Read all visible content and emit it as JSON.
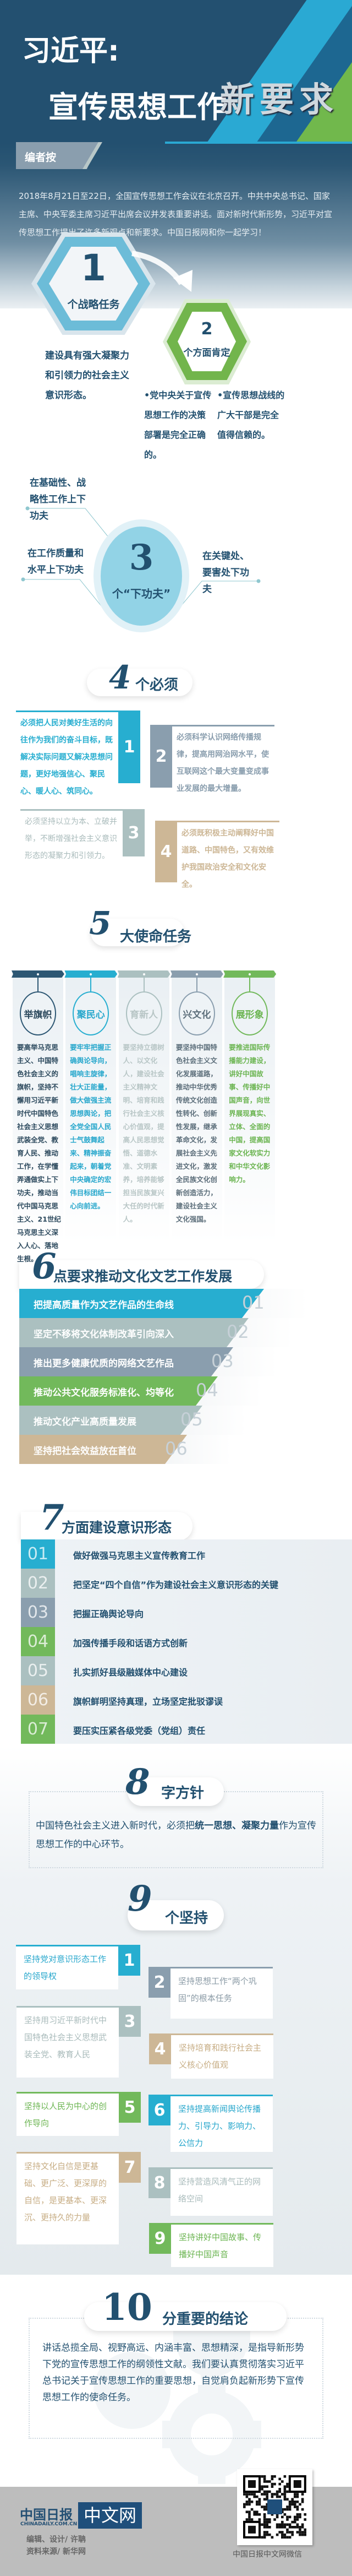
{
  "colors": {
    "navy": "#235070",
    "cyan": "#27aed0",
    "slate": "#8a9eae",
    "sage": "#abc0c0",
    "tan": "#cdb796",
    "green": "#72b95b"
  },
  "header": {
    "title_line1": "习近平:",
    "title_line2": "宣传思想工作",
    "title_highlight": "新要求"
  },
  "editor_note": {
    "label": "编者按",
    "text": "2018年8月21日至22日，全国宣传思想工作会议在北京召开。中共中央总书记、国家主席、中央军委主席习近平出席会议并发表重要讲话。面对新时代新形势，习近平对宣传思想工作提出了许多新观点和新要求。中国日报网和你一起学习！"
  },
  "s1": {
    "number": "1",
    "label": "个战略任务",
    "text": "建设具有强大凝聚力和引领力的社会主义意识形态。"
  },
  "s2": {
    "number": "2",
    "label": "个方面肯定",
    "items": [
      "•党中央关于宣传思想工作的决策部署是完全正确的。",
      "•宣传思想战线的广大干部是完全值得信赖的。"
    ]
  },
  "s3": {
    "number": "3",
    "label": "个“下功夫”",
    "items": [
      "在基础性、战略性工作上下功夫",
      "在工作质量和水平上下功夫",
      "在关键处、要害处下功夫"
    ]
  },
  "s4": {
    "number": "4",
    "label": "个必须",
    "items": [
      {
        "n": "1",
        "text": "必须把人民对美好生活的向往作为我们的奋斗目标，既解决实际问题又解决思想问题，更好地强信心、聚民心、暖人心、筑同心。"
      },
      {
        "n": "2",
        "text": "必须科学认识网络传播规律，提高用网治网水平，使互联网这个最大变量变成事业发展的最大增量。"
      },
      {
        "n": "3",
        "text": "必须坚持以立为本、立破并举，不断增强社会主义意识形态的凝聚力和引领力。"
      },
      {
        "n": "4",
        "text": "必须既积极主动阐释好中国道路、中国特色，又有效维护我国政治安全和文化安全。"
      }
    ]
  },
  "s5": {
    "number": "5",
    "label": "大使命任务",
    "items": [
      {
        "title": "举旗帜",
        "text": "要高举马克思主义、中国特色社会主义的旗帜，坚持不懈用习近平新时代中国特色社会主义思想武装全党、教育人民、推动工作，在学懂弄通做实上下功夫，推动当代中国马克思主义、21世纪马克思主义深入人心、落地生根。"
      },
      {
        "title": "聚民心",
        "text": "要牢牢把握正确舆论导向，唱响主旋律，壮大正能量，做大做强主流思想舆论，把全党全国人民士气鼓舞起来、精神振奋起来，朝着党中央确定的宏伟目标团结一心向前进。"
      },
      {
        "title": "育新人",
        "text": "要坚持立德树人、以文化人，建设社会主义精神文明、培育和践行社会主义核心价值观，提高人民思想觉悟、道德水准、文明素养，培养能够担当民族复兴大任的时代新人。"
      },
      {
        "title": "兴文化",
        "text": "要坚持中国特色社会主义文化发展道路，推动中华优秀传统文化创造性转化、创新性发展，继承革命文化，发展社会主义先进文化，激发全民族文化创新创造活力，建设社会主义文化强国。"
      },
      {
        "title": "展形象",
        "text": "要推进国际传播能力建设，讲好中国故事、传播好中国声音，向世界展现真实、立体、全面的中国，提高国家文化软实力和中华文化影响力。"
      }
    ]
  },
  "s6": {
    "number": "6",
    "label": "点要求推动文化文艺工作发展",
    "items": [
      {
        "n": "01",
        "text": "把提高质量作为文艺作品的生命线"
      },
      {
        "n": "02",
        "text": "坚定不移将文化体制改革引向深入"
      },
      {
        "n": "03",
        "text": "推出更多健康优质的网络文艺作品"
      },
      {
        "n": "04",
        "text": "推动公共文化服务标准化、均等化"
      },
      {
        "n": "05",
        "text": "推动文化产业高质量发展"
      },
      {
        "n": "06",
        "text": "坚持把社会效益放在首位"
      }
    ]
  },
  "s7": {
    "number": "7",
    "label": "方面建设意识形态",
    "items": [
      {
        "n": "01",
        "text": "做好做强马克思主义宣传教育工作"
      },
      {
        "n": "02",
        "text": "把坚定“四个自信”作为建设社会主义意识形态的关键"
      },
      {
        "n": "03",
        "text": "把握正确舆论导向"
      },
      {
        "n": "04",
        "text": "加强传播手段和话语方式创新"
      },
      {
        "n": "05",
        "text": "扎实抓好县级融媒体中心建设"
      },
      {
        "n": "06",
        "text": "旗帜鲜明坚持真理，立场坚定批驳谬误"
      },
      {
        "n": "07",
        "text": "要压实压紧各级党委（党组）责任"
      }
    ]
  },
  "s8": {
    "number": "8",
    "label": "字方针",
    "text_before": "中国特色社会主义进入新时代，必须把",
    "text_bold": "统一思想、凝聚力量",
    "text_after": "作为宣传思想工作的中心环节。"
  },
  "s9": {
    "number": "9",
    "label": "个坚持",
    "items": [
      {
        "n": "1",
        "text": "坚持党对意识形态工作的领导权"
      },
      {
        "n": "2",
        "text": "坚持思想工作“两个巩固”的根本任务"
      },
      {
        "n": "3",
        "text": "坚持用习近平新时代中国特色社会主义思想武装全党、教育人民"
      },
      {
        "n": "4",
        "text": "坚持培育和践行社会主义核心价值观"
      },
      {
        "n": "5",
        "text": "坚持以人民为中心的创作导向"
      },
      {
        "n": "6",
        "text": "坚持提高新闻舆论传播力、引导力、影响力、公信力"
      },
      {
        "n": "7",
        "text": "坚持文化自信是更基础、更广泛、更深厚的自信，是更基本、更深沉、更持久的力量"
      },
      {
        "n": "8",
        "text": "坚持营造风清气正的网络空间"
      },
      {
        "n": "9",
        "text": "坚持讲好中国故事、传播好中国声音"
      }
    ]
  },
  "s10": {
    "number": "10",
    "label": "分重要的结论",
    "text": "讲话总揽全局、视野高远、内涵丰富、思想精深，是指导新形势下党的宣传思想工作的纲领性文献。我们要认真贯彻落实习近平总书记关于宣传思想工作的重要思想，自觉肩负起新形势下宣传思想工作的使命任务。"
  },
  "footer": {
    "logo_cn": "中国日报",
    "logo_en": "CHINADAILY.COM.CN",
    "logo_badge": "中文网",
    "credit_editor": "编辑、设计/ 许聃",
    "credit_source": "资料来源/ 新华网",
    "qr_caption": "中国日报中文网微信"
  }
}
